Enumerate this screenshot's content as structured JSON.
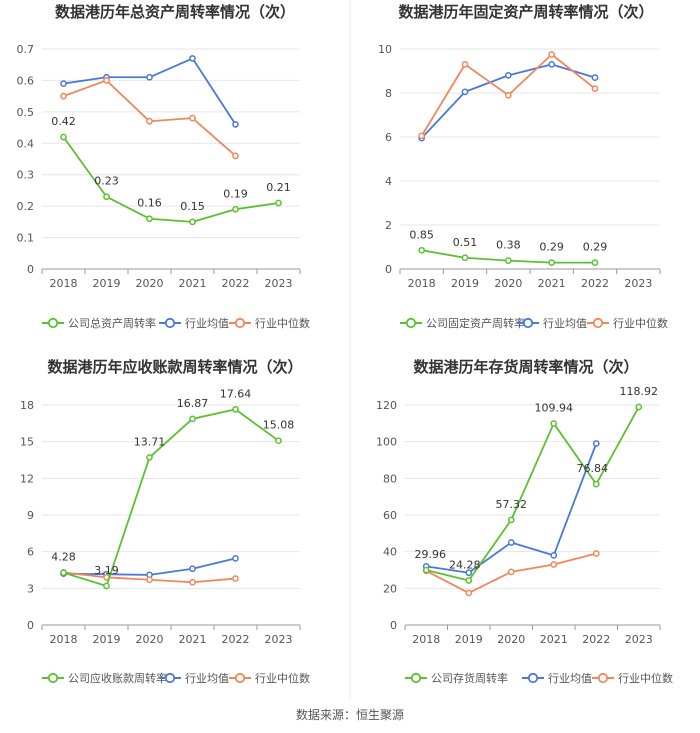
{
  "colors": {
    "company": "#5ac12e",
    "industry_avg": "#4a78d8",
    "industry_median": "#f0875a",
    "grid": "#e6e6e6",
    "axis": "#999999",
    "text": "#555555",
    "title": "#333333"
  },
  "source": "数据来源：恒生聚源",
  "chart_data": [
    {
      "type": "line",
      "title": "数据港历年总资产周转率情况（次）",
      "categories": [
        "2018",
        "2019",
        "2020",
        "2021",
        "2022",
        "2023"
      ],
      "ylim": [
        0,
        0.7
      ],
      "yticks": [
        "0",
        "0.1",
        "0.2",
        "0.3",
        "0.4",
        "0.5",
        "0.6",
        "0.7"
      ],
      "series": [
        {
          "name": "公司总资产周转率",
          "role": "company",
          "values": [
            0.42,
            0.23,
            0.16,
            0.15,
            0.19,
            0.21
          ],
          "labels": [
            "0.42",
            "0.23",
            "0.16",
            "0.15",
            "0.19",
            "0.21"
          ]
        },
        {
          "name": "行业均值",
          "role": "industry_avg",
          "values": [
            0.59,
            0.61,
            0.61,
            0.67,
            0.46,
            null
          ]
        },
        {
          "name": "行业中位数",
          "role": "industry_median",
          "values": [
            0.55,
            0.6,
            0.47,
            0.48,
            0.36,
            null
          ]
        }
      ]
    },
    {
      "type": "line",
      "title": "数据港历年固定资产周转率情况（次）",
      "categories": [
        "2018",
        "2019",
        "2020",
        "2021",
        "2022",
        "2023"
      ],
      "ylim": [
        0,
        10
      ],
      "yticks": [
        "0",
        "2",
        "4",
        "6",
        "8",
        "10"
      ],
      "series": [
        {
          "name": "公司固定资产周转率",
          "role": "company",
          "values": [
            0.85,
            0.51,
            0.38,
            0.29,
            0.29,
            null
          ],
          "labels": [
            "0.85",
            "0.51",
            "0.38",
            "0.29",
            "0.29",
            null
          ]
        },
        {
          "name": "行业均值",
          "role": "industry_avg",
          "values": [
            5.95,
            8.05,
            8.8,
            9.3,
            8.7,
            null
          ]
        },
        {
          "name": "行业中位数",
          "role": "industry_median",
          "values": [
            6.05,
            9.3,
            7.9,
            9.75,
            8.2,
            null
          ]
        }
      ]
    },
    {
      "type": "line",
      "title": "数据港历年应收账款周转率情况（次）",
      "categories": [
        "2018",
        "2019",
        "2020",
        "2021",
        "2022",
        "2023"
      ],
      "ylim": [
        0,
        18
      ],
      "yticks": [
        "0",
        "3",
        "6",
        "9",
        "12",
        "15",
        "18"
      ],
      "series": [
        {
          "name": "公司应收账款周转率",
          "role": "company",
          "values": [
            4.28,
            3.19,
            13.71,
            16.87,
            17.64,
            15.08
          ],
          "labels": [
            "4.28",
            "3.19",
            "13.71",
            "16.87",
            "17.64",
            "15.08"
          ]
        },
        {
          "name": "行业均值",
          "role": "industry_avg",
          "values": [
            4.2,
            4.15,
            4.1,
            4.6,
            5.45,
            null
          ]
        },
        {
          "name": "行业中位数",
          "role": "industry_median",
          "values": [
            4.3,
            3.9,
            3.7,
            3.5,
            3.8,
            null
          ]
        }
      ]
    },
    {
      "type": "line",
      "title": "数据港历年存货周转率情况（次）",
      "categories": [
        "2018",
        "2019",
        "2020",
        "2021",
        "2022",
        "2023"
      ],
      "ylim": [
        0,
        120
      ],
      "yticks": [
        "0",
        "20",
        "40",
        "60",
        "80",
        "100",
        "120"
      ],
      "series": [
        {
          "name": "公司存货周转率",
          "role": "company",
          "values": [
            29.96,
            24.28,
            57.32,
            109.94,
            76.84,
            118.92
          ],
          "labels": [
            "29.96",
            "24.28",
            "57.32",
            "109.94",
            "76.84",
            "118.92"
          ]
        },
        {
          "name": "行业均值",
          "role": "industry_avg",
          "values": [
            32,
            28.5,
            45,
            38,
            99,
            null
          ]
        },
        {
          "name": "行业中位数",
          "role": "industry_median",
          "values": [
            29.5,
            17.5,
            29,
            33,
            39,
            null
          ]
        }
      ]
    }
  ]
}
